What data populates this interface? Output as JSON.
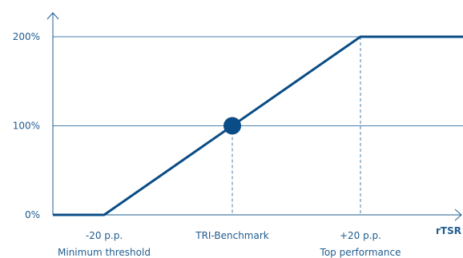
{
  "colors": {
    "axis": "#1f5c8f",
    "grid": "#4a7fb0",
    "line": "#0a4c86",
    "marker": "#0a4c86",
    "text": "#1f5c8f"
  },
  "chart_data": {
    "type": "line",
    "title": "",
    "xlabel": "rTSR",
    "ylabel": "",
    "xlim": [
      -28,
      36
    ],
    "ylim": [
      0,
      200
    ],
    "grid": {
      "horizontal": true,
      "vertical": false
    },
    "y_ticks": [
      {
        "value": 0,
        "label": "0%"
      },
      {
        "value": 100,
        "label": "100%"
      },
      {
        "value": 200,
        "label": "200%"
      }
    ],
    "x_ticks": [
      {
        "value": -20,
        "label": "-20 p.p.",
        "caption": "Minimum threshold"
      },
      {
        "value": 0,
        "label": "",
        "caption": "TRI-Benchmark"
      },
      {
        "value": 20,
        "label": "+20 p.p.",
        "caption": "Top performance"
      }
    ],
    "series": [
      {
        "x": [
          -28,
          -20,
          20,
          36
        ],
        "y": [
          0,
          0,
          200,
          200
        ]
      }
    ],
    "highlight_point": {
      "x": 0,
      "y": 100
    },
    "guide_lines": [
      {
        "x": 0,
        "y": 100
      },
      {
        "x": 20,
        "y": 200
      }
    ]
  }
}
